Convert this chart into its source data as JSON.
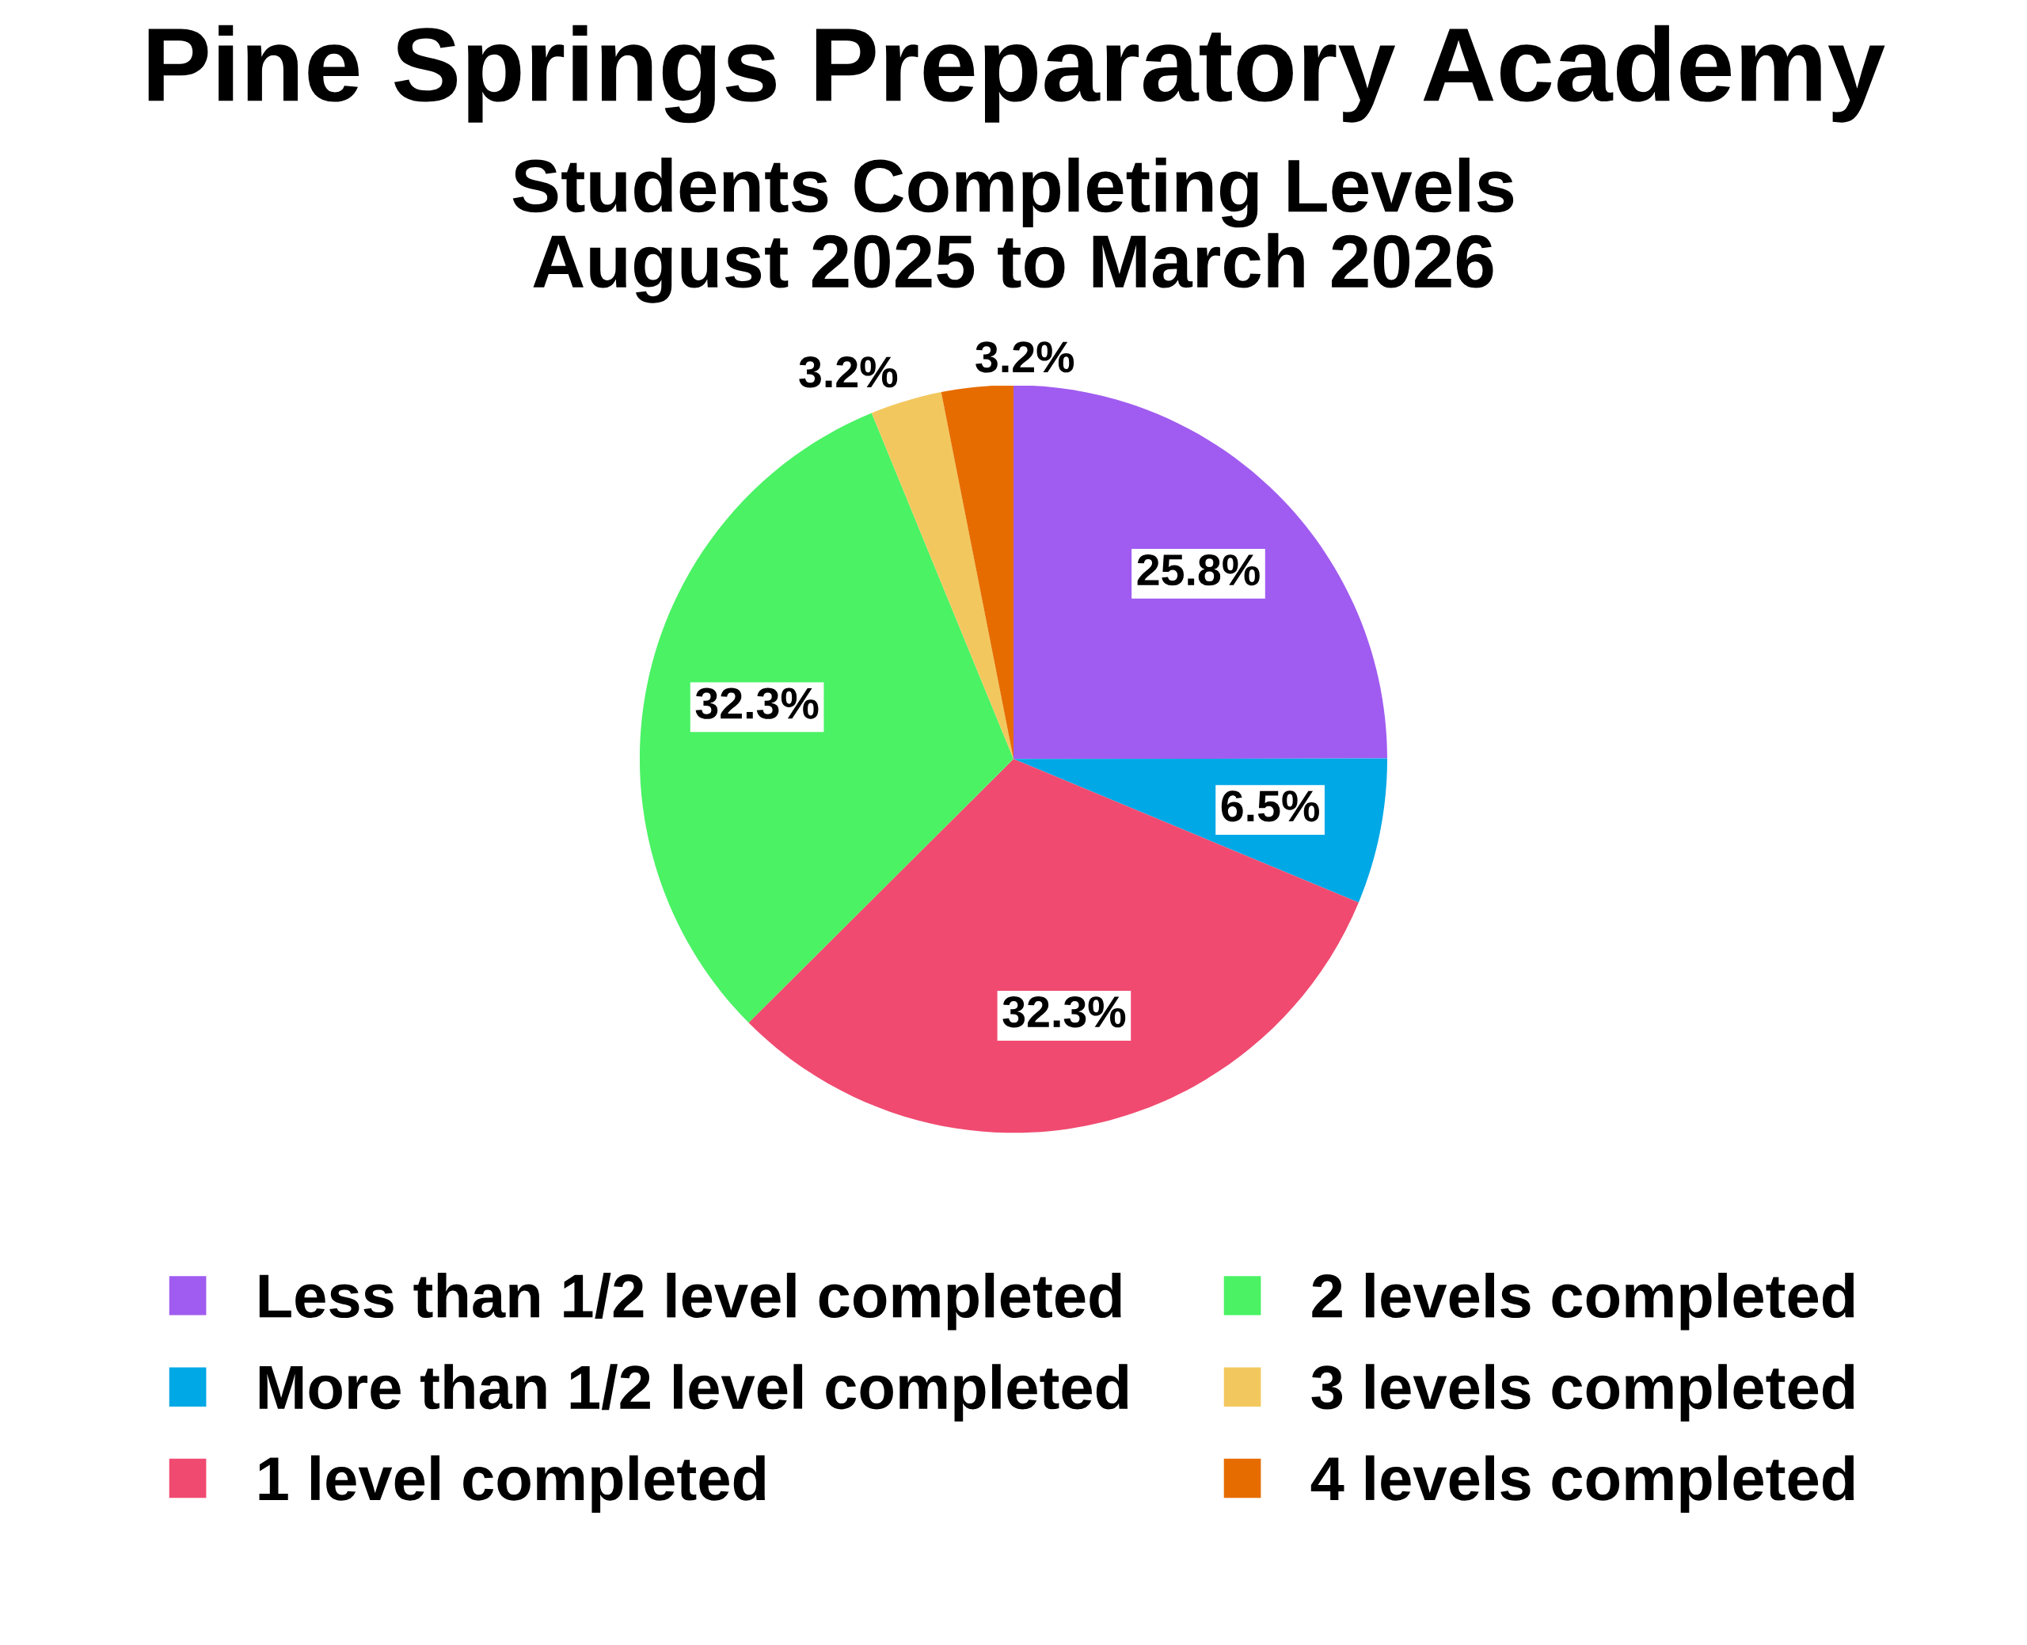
{
  "chart_data": {
    "type": "pie",
    "title": "Pine Springs Preparatory Academy",
    "subtitle": "Students Completing Levels\nAugust 2025 to March 2026",
    "categories": [
      "Less than 1/2 level completed",
      "More than 1/2 level completed",
      "1 level completed",
      "2 levels completed",
      "3 levels completed",
      "4 levels completed"
    ],
    "values": [
      25.8,
      6.5,
      32.3,
      32.3,
      3.2,
      3.2
    ],
    "value_labels": [
      "25.8%",
      "6.5%",
      "32.3%",
      "32.3%",
      "3.2%",
      "3.2%"
    ],
    "colors": [
      "#a05cf0",
      "#00a8e6",
      "#f04a70",
      "#4af264",
      "#f2c85e",
      "#e66c00"
    ],
    "legend": "bottom"
  }
}
